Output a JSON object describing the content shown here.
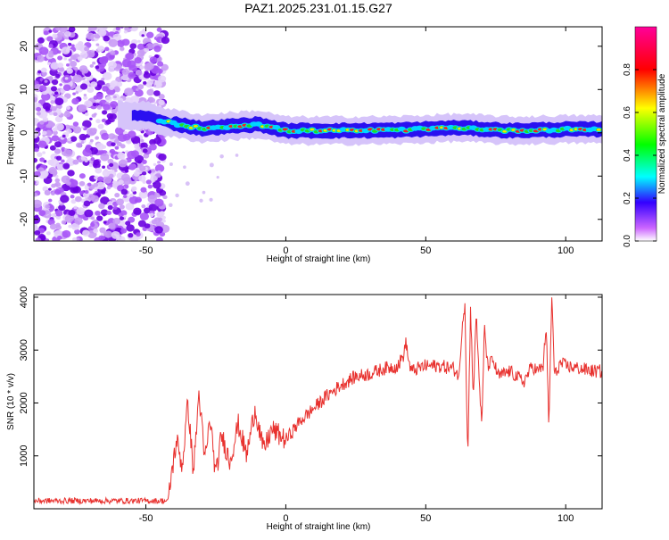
{
  "figure_title": "PAZ1.2025.231.01.15.G27",
  "colors": {
    "snr_line": "#e8312e",
    "scatter": "#8a2be2",
    "axis": "#000000"
  },
  "chart_data": [
    {
      "type": "heatmap",
      "title": "PAZ1.2025.231.01.15.G27",
      "xlabel": "Height of straight line (km)",
      "ylabel": "Frequency (Hz)",
      "xlim": [
        -90,
        113
      ],
      "ylim": [
        -25,
        24.5
      ],
      "xticks": [
        -50,
        0,
        50,
        100
      ],
      "yticks": [
        -20,
        -10,
        0,
        10,
        20
      ],
      "colorbar": {
        "label": "Normalized spectral amplitude",
        "range": [
          0,
          1
        ],
        "ticks": [
          0.0,
          0.2,
          0.4,
          0.6,
          0.8
        ],
        "tick_labels": [
          "0.0",
          "0.2",
          "0.4",
          "0.6",
          "0.8"
        ]
      },
      "noise_region_x": [
        -90,
        -43
      ],
      "band_center_hz": [
        [
          -60,
          4
        ],
        [
          -50,
          4
        ],
        [
          -43,
          2.5
        ],
        [
          -30,
          1
        ],
        [
          -10,
          2
        ],
        [
          0,
          0.5
        ],
        [
          20,
          0.5
        ],
        [
          40,
          0.6
        ],
        [
          62,
          1.2
        ],
        [
          80,
          0.5
        ],
        [
          100,
          0.8
        ],
        [
          113,
          0.8
        ]
      ]
    },
    {
      "type": "line",
      "title": "",
      "xlabel": "Height of straight line (km)",
      "ylabel": "SNR (10 * v/v)",
      "xlim": [
        -90,
        113
      ],
      "ylim": [
        0,
        4050
      ],
      "xticks": [
        -50,
        0,
        50,
        100
      ],
      "yticks": [
        1000,
        2000,
        3000,
        4000
      ],
      "series": [
        {
          "name": "SNR",
          "x": [
            -90,
            -70,
            -50,
            -42,
            -41,
            -39,
            -37,
            -35,
            -33,
            -31,
            -29,
            -27,
            -25,
            -23,
            -20,
            -17,
            -14,
            -11,
            -8,
            -5,
            0,
            5,
            10,
            15,
            20,
            25,
            30,
            35,
            40,
            42,
            43,
            44,
            45,
            47,
            50,
            55,
            60,
            62,
            63,
            64,
            65,
            66,
            67,
            68,
            70,
            71,
            72,
            74,
            76,
            80,
            85,
            88,
            90,
            92,
            93,
            94,
            95,
            96,
            98,
            100,
            105,
            110,
            113
          ],
          "y": [
            150,
            150,
            150,
            150,
            600,
            1300,
            800,
            2000,
            700,
            2200,
            900,
            1700,
            600,
            1400,
            900,
            1600,
            1000,
            1900,
            1100,
            1500,
            1300,
            1650,
            1900,
            2150,
            2350,
            2500,
            2550,
            2650,
            2700,
            2900,
            3150,
            2750,
            2600,
            2650,
            2700,
            2700,
            2650,
            2500,
            3500,
            3900,
            900,
            3850,
            2100,
            3700,
            1500,
            3500,
            2700,
            2800,
            2500,
            2600,
            2400,
            2700,
            2600,
            2700,
            3500,
            1500,
            4050,
            2500,
            2750,
            2700,
            2650,
            2600,
            2600
          ]
        }
      ]
    }
  ]
}
